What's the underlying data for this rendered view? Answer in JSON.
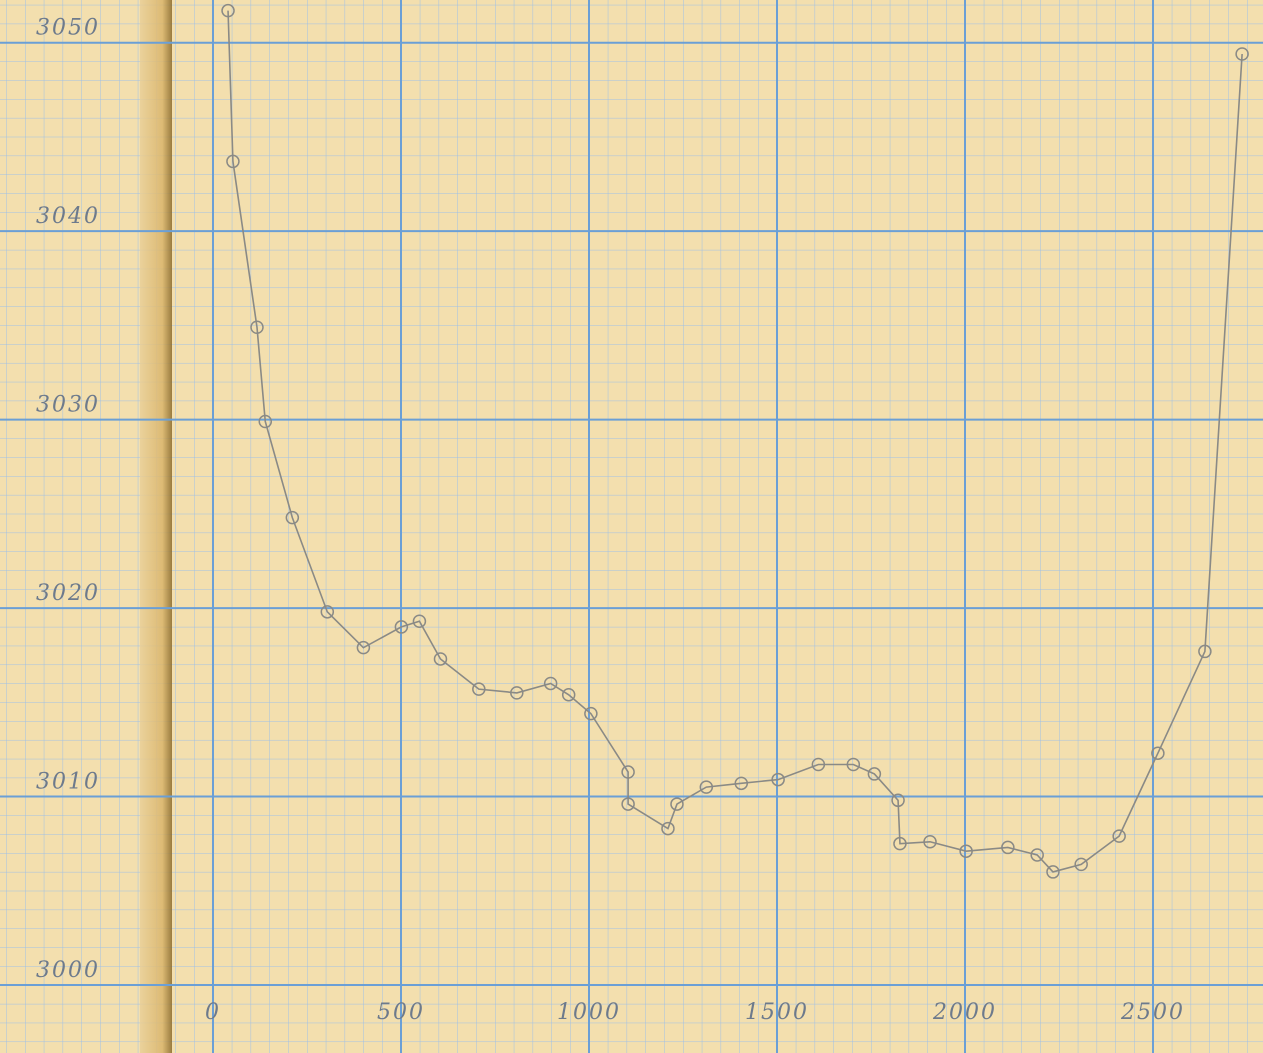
{
  "chart_data": {
    "type": "line",
    "x": [
      40,
      53,
      117,
      139,
      211,
      304,
      400,
      501,
      549,
      605,
      707,
      808,
      898,
      946,
      1005,
      1104,
      1104,
      1210,
      1234,
      1312,
      1405,
      1503,
      1610,
      1703,
      1759,
      1822,
      1827,
      1907,
      2003,
      2114,
      2192,
      2234,
      2309,
      2410,
      2513,
      2638,
      2737
    ],
    "series": [
      {
        "color": "#8a8a86",
        "values": [
          3051.7,
          3043.7,
          3034.9,
          3029.9,
          3024.8,
          3019.8,
          3017.9,
          3019.0,
          3019.3,
          3017.3,
          3015.7,
          3015.5,
          3016.0,
          3015.4,
          3014.4,
          3011.3,
          3009.6,
          3008.3,
          3009.6,
          3010.5,
          3010.7,
          3010.9,
          3011.7,
          3011.7,
          3011.2,
          3009.8,
          3007.5,
          3007.6,
          3007.1,
          3007.3,
          3006.9,
          3006.0,
          3006.4,
          3007.9,
          3012.3,
          3017.7,
          3049.4
        ]
      }
    ],
    "xlim": [
      0,
      2750
    ],
    "ylim": [
      3000,
      3052
    ],
    "xticks": [
      0,
      500,
      1000,
      1500,
      2000,
      2500
    ],
    "yticks": [
      3000,
      3010,
      3020,
      3030,
      3040,
      3050
    ],
    "grid": true
  }
}
